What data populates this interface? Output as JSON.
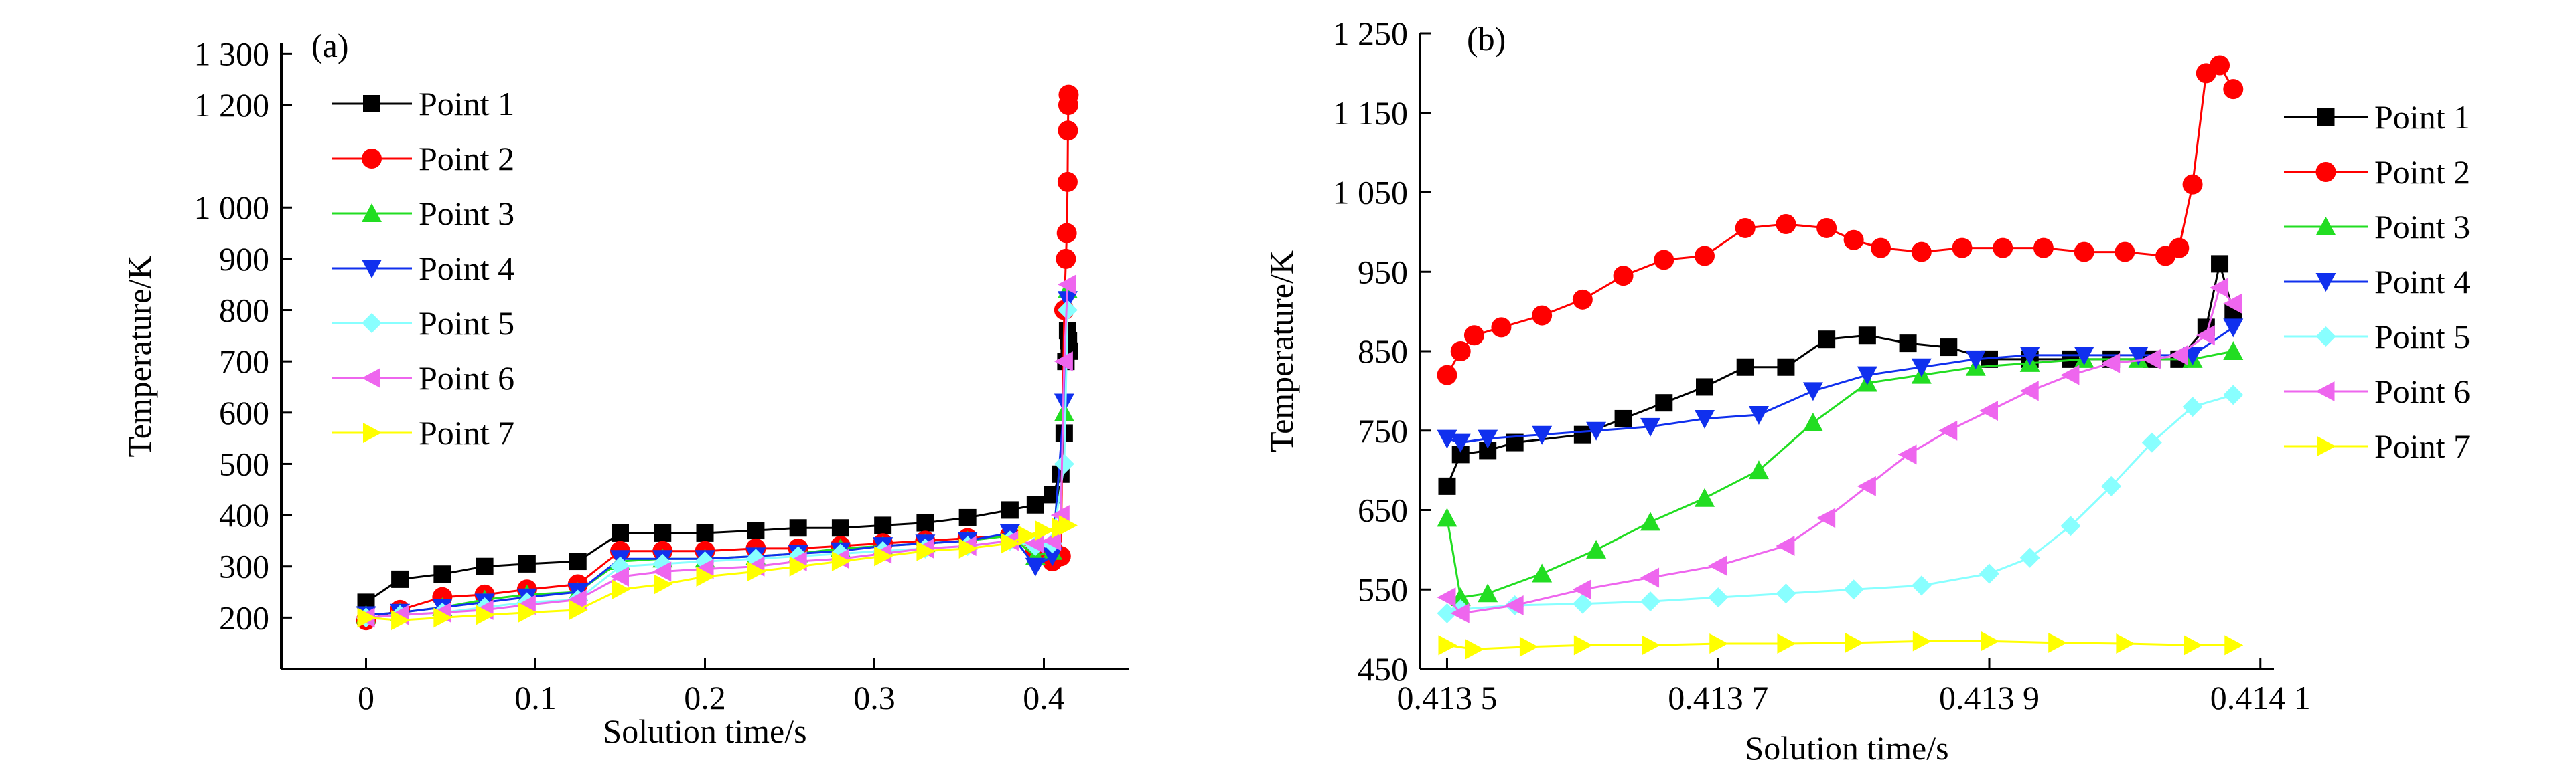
{
  "figure": {
    "panels": [
      {
        "panel_label": "(a)"
      },
      {
        "panel_label": "(b)"
      }
    ]
  },
  "chart_data": [
    {
      "type": "line",
      "panel_label": "(a)",
      "xlabel": "Solution time/s",
      "ylabel": "Temperature/K",
      "xlim": [
        -0.05,
        0.45
      ],
      "ylim": [
        100,
        1320
      ],
      "xticks": [
        0,
        0.1,
        0.2,
        0.3,
        0.4
      ],
      "xtick_labels": [
        "0",
        "0.1",
        "0.2",
        "0.3",
        "0.4"
      ],
      "yticks": [
        200,
        300,
        400,
        500,
        600,
        700,
        800,
        900,
        1000,
        1200,
        1300
      ],
      "ytick_labels": [
        "200",
        "300",
        "400",
        "500",
        "600",
        "700",
        "800",
        "900",
        "1 000",
        "1 200",
        "1 300"
      ],
      "legend_position": "top-left",
      "series": [
        {
          "name": "Point 1",
          "color": "#000000",
          "marker": "square",
          "x": [
            0,
            0.02,
            0.045,
            0.07,
            0.095,
            0.125,
            0.15,
            0.175,
            0.2,
            0.23,
            0.255,
            0.28,
            0.305,
            0.33,
            0.355,
            0.38,
            0.395,
            0.405,
            0.41,
            0.412,
            0.413,
            0.414,
            0.4145,
            0.415
          ],
          "y": [
            230,
            275,
            285,
            300,
            305,
            310,
            365,
            365,
            365,
            370,
            375,
            375,
            380,
            385,
            395,
            410,
            420,
            440,
            480,
            560,
            700,
            760,
            740,
            720
          ]
        },
        {
          "name": "Point 2",
          "color": "#ff0000",
          "marker": "circle",
          "x": [
            0,
            0.02,
            0.045,
            0.07,
            0.095,
            0.125,
            0.15,
            0.175,
            0.2,
            0.23,
            0.255,
            0.28,
            0.305,
            0.33,
            0.355,
            0.38,
            0.395,
            0.405,
            0.41,
            0.412,
            0.413,
            0.4135,
            0.414,
            0.4142,
            0.4144,
            0.4146
          ],
          "y": [
            195,
            215,
            240,
            245,
            255,
            265,
            330,
            330,
            330,
            335,
            335,
            340,
            345,
            350,
            355,
            360,
            330,
            310,
            320,
            800,
            900,
            950,
            1050,
            1150,
            1200,
            1220
          ]
        },
        {
          "name": "Point 3",
          "color": "#22dd22",
          "marker": "triangle-up",
          "x": [
            0,
            0.02,
            0.045,
            0.07,
            0.095,
            0.125,
            0.15,
            0.175,
            0.2,
            0.23,
            0.255,
            0.28,
            0.305,
            0.33,
            0.355,
            0.38,
            0.395,
            0.405,
            0.412,
            0.414
          ],
          "y": [
            205,
            210,
            220,
            235,
            245,
            250,
            310,
            315,
            315,
            320,
            325,
            335,
            340,
            345,
            350,
            360,
            320,
            330,
            600,
            840
          ]
        },
        {
          "name": "Point 4",
          "color": "#1030ee",
          "marker": "triangle-down",
          "x": [
            0,
            0.02,
            0.045,
            0.07,
            0.095,
            0.125,
            0.15,
            0.175,
            0.2,
            0.23,
            0.255,
            0.28,
            0.305,
            0.33,
            0.355,
            0.38,
            0.395,
            0.405,
            0.412,
            0.414
          ],
          "y": [
            205,
            210,
            220,
            230,
            240,
            250,
            315,
            315,
            315,
            320,
            325,
            330,
            340,
            345,
            350,
            365,
            300,
            320,
            620,
            820
          ]
        },
        {
          "name": "Point 5",
          "color": "#88ffff",
          "marker": "diamond",
          "x": [
            0,
            0.02,
            0.045,
            0.07,
            0.095,
            0.125,
            0.15,
            0.175,
            0.2,
            0.23,
            0.255,
            0.28,
            0.305,
            0.33,
            0.355,
            0.38,
            0.395,
            0.405,
            0.412,
            0.414
          ],
          "y": [
            200,
            205,
            210,
            220,
            230,
            235,
            300,
            305,
            310,
            315,
            320,
            325,
            330,
            335,
            340,
            350,
            340,
            345,
            500,
            800
          ]
        },
        {
          "name": "Point 6",
          "color": "#ee66ee",
          "marker": "triangle-left",
          "x": [
            0,
            0.02,
            0.045,
            0.07,
            0.095,
            0.125,
            0.15,
            0.175,
            0.2,
            0.23,
            0.255,
            0.28,
            0.305,
            0.33,
            0.355,
            0.38,
            0.395,
            0.405,
            0.41,
            0.412,
            0.414
          ],
          "y": [
            200,
            205,
            210,
            215,
            225,
            235,
            280,
            290,
            295,
            300,
            310,
            315,
            325,
            335,
            340,
            350,
            345,
            350,
            400,
            700,
            850
          ]
        },
        {
          "name": "Point 7",
          "color": "#ffff00",
          "marker": "triangle-right",
          "x": [
            0,
            0.02,
            0.045,
            0.07,
            0.095,
            0.125,
            0.15,
            0.175,
            0.2,
            0.23,
            0.255,
            0.28,
            0.305,
            0.33,
            0.355,
            0.38,
            0.39,
            0.4,
            0.41,
            0.414
          ],
          "y": [
            200,
            195,
            200,
            205,
            210,
            215,
            255,
            265,
            280,
            290,
            300,
            310,
            320,
            330,
            335,
            345,
            360,
            370,
            375,
            380
          ]
        }
      ]
    },
    {
      "type": "line",
      "panel_label": "(b)",
      "xlabel": "Solution time/s",
      "ylabel": "Temperature/K",
      "xlim": [
        0.41348,
        0.41411
      ],
      "ylim": [
        450,
        1250
      ],
      "xticks": [
        0.4135,
        0.4137,
        0.4139,
        0.4141
      ],
      "xtick_labels": [
        "0.413 5",
        "0.413 7",
        "0.413 9",
        "0.414 1"
      ],
      "yticks": [
        450,
        550,
        650,
        750,
        850,
        950,
        1050,
        1150,
        1250
      ],
      "ytick_labels": [
        "450",
        "550",
        "650",
        "750",
        "850",
        "950",
        "1 050",
        "1 150",
        "1 250"
      ],
      "legend_position": "right",
      "series": [
        {
          "name": "Point 1",
          "color": "#000000",
          "marker": "square",
          "x": [
            0.4135,
            0.41351,
            0.41353,
            0.41355,
            0.4136,
            0.41363,
            0.41366,
            0.41369,
            0.41372,
            0.41375,
            0.41378,
            0.41381,
            0.41384,
            0.41387,
            0.4139,
            0.41393,
            0.41396,
            0.41399,
            0.41402,
            0.41404,
            0.41406,
            0.41407,
            0.41408
          ],
          "y": [
            680,
            720,
            725,
            735,
            745,
            765,
            785,
            805,
            830,
            830,
            865,
            870,
            860,
            855,
            840,
            840,
            840,
            840,
            840,
            840,
            880,
            960,
            900
          ]
        },
        {
          "name": "Point 2",
          "color": "#ff0000",
          "marker": "circle",
          "x": [
            0.4135,
            0.41351,
            0.41352,
            0.41354,
            0.41357,
            0.4136,
            0.41363,
            0.41366,
            0.41369,
            0.41372,
            0.41375,
            0.41378,
            0.4138,
            0.41382,
            0.41385,
            0.41388,
            0.41391,
            0.41394,
            0.41397,
            0.414,
            0.41403,
            0.41404,
            0.41405,
            0.41406,
            0.41407,
            0.41408
          ],
          "y": [
            820,
            850,
            870,
            880,
            895,
            915,
            945,
            965,
            970,
            1005,
            1010,
            1005,
            990,
            980,
            975,
            980,
            980,
            980,
            975,
            975,
            970,
            980,
            1060,
            1200,
            1210,
            1180
          ]
        },
        {
          "name": "Point 3",
          "color": "#22dd22",
          "marker": "triangle-up",
          "x": [
            0.4135,
            0.41351,
            0.41353,
            0.41357,
            0.41361,
            0.41365,
            0.41369,
            0.41373,
            0.41377,
            0.41381,
            0.41385,
            0.41389,
            0.41393,
            0.41397,
            0.41401,
            0.41405,
            0.41408
          ],
          "y": [
            640,
            540,
            545,
            570,
            600,
            635,
            665,
            700,
            760,
            810,
            820,
            830,
            835,
            840,
            840,
            840,
            850
          ]
        },
        {
          "name": "Point 4",
          "color": "#1030ee",
          "marker": "triangle-down",
          "x": [
            0.4135,
            0.41351,
            0.41353,
            0.41357,
            0.41361,
            0.41365,
            0.41369,
            0.41373,
            0.41377,
            0.41381,
            0.41385,
            0.41389,
            0.41393,
            0.41397,
            0.41401,
            0.41405,
            0.41408
          ],
          "y": [
            740,
            735,
            740,
            745,
            750,
            755,
            765,
            770,
            800,
            820,
            830,
            840,
            845,
            845,
            845,
            845,
            880
          ]
        },
        {
          "name": "Point 5",
          "color": "#88ffff",
          "marker": "diamond",
          "x": [
            0.4135,
            0.41351,
            0.41355,
            0.4136,
            0.41365,
            0.4137,
            0.41375,
            0.4138,
            0.41385,
            0.4139,
            0.41393,
            0.41396,
            0.41399,
            0.41402,
            0.41405,
            0.41408
          ],
          "y": [
            520,
            525,
            530,
            532,
            535,
            540,
            545,
            550,
            555,
            570,
            590,
            630,
            680,
            735,
            780,
            795
          ]
        },
        {
          "name": "Point 6",
          "color": "#ee66ee",
          "marker": "triangle-left",
          "x": [
            0.4135,
            0.41351,
            0.41355,
            0.4136,
            0.41365,
            0.4137,
            0.41375,
            0.41378,
            0.41381,
            0.41384,
            0.41387,
            0.4139,
            0.41393,
            0.41396,
            0.41399,
            0.41402,
            0.41404,
            0.41406,
            0.41407,
            0.41408
          ],
          "y": [
            540,
            520,
            530,
            550,
            565,
            580,
            605,
            640,
            680,
            720,
            750,
            775,
            800,
            820,
            835,
            840,
            845,
            870,
            930,
            910
          ]
        },
        {
          "name": "Point 7",
          "color": "#ffff00",
          "marker": "triangle-right",
          "x": [
            0.4135,
            0.41352,
            0.41356,
            0.4136,
            0.41365,
            0.4137,
            0.41375,
            0.4138,
            0.41385,
            0.4139,
            0.41395,
            0.414,
            0.41405,
            0.41408
          ],
          "y": [
            480,
            475,
            478,
            480,
            480,
            482,
            482,
            483,
            485,
            485,
            483,
            482,
            480,
            480
          ]
        }
      ]
    }
  ]
}
